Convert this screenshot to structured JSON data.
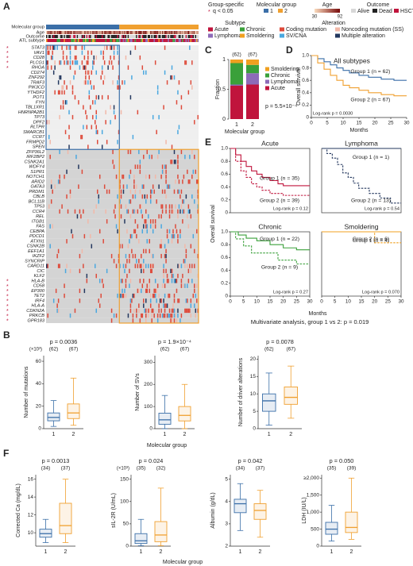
{
  "panels": [
    "A",
    "B",
    "C",
    "D",
    "E",
    "F"
  ],
  "multivariate": "Multivariate analysis, group 1 vs 2: p = 0.019",
  "panel_e": {
    "ylabel": "Overall survival",
    "xlabel": "Months"
  },
  "panel_b": {
    "xlabel": "Molecular group"
  },
  "panel_f": {
    "xlabel": "Molecular group"
  },
  "chart_data": [
    {
      "type": "oncoprint",
      "track_labels": [
        "Molecular group",
        "Age",
        "Outcome",
        "ATL subtype"
      ],
      "group_names": [
        "1",
        "2"
      ],
      "group_sizes": [
        62,
        67
      ],
      "group_colors": [
        "#3b6fa8",
        "#f0a030"
      ],
      "genes": [
        "STAT3",
        "VAV1",
        "CD28",
        "PLCG1",
        "RHOA",
        "CD274",
        "ZNF292",
        "TRAF3",
        "PIK3CD",
        "YTHDF2",
        "POT1",
        "FYN",
        "TBL1XR1",
        "HNRNPA2B1",
        "TP73",
        "DPF2",
        "RLTPR",
        "SMARCB1",
        "CCR7",
        "FRMPD2",
        "SPEN",
        "ZFP36L2",
        "IRF2BP2",
        "CSNK2A1",
        "WDFY4",
        "S1PR1",
        "NOTCH1",
        "ARID2",
        "GATA3",
        "PRDM1",
        "CBLB",
        "BCL11B",
        "TP53",
        "CCR4",
        "REL",
        "ITGB1",
        "FAS",
        "CEBPA",
        "PDCD1",
        "ATXN1",
        "CSNK2B",
        "EEF1A1",
        "IKZF2",
        "SYNCRIP",
        "CARD11",
        "CIC",
        "KLF2",
        "HLA-B",
        "CD58",
        "EP300",
        "TET2",
        "IRF4",
        "HLA-A",
        "CDKN2A",
        "PRKCB",
        "GPR183"
      ],
      "significant": [
        true,
        true,
        true,
        true,
        true,
        false,
        false,
        false,
        false,
        false,
        false,
        false,
        false,
        false,
        false,
        false,
        false,
        false,
        false,
        false,
        false,
        false,
        false,
        false,
        false,
        false,
        false,
        false,
        false,
        false,
        false,
        false,
        false,
        false,
        false,
        false,
        false,
        false,
        false,
        false,
        false,
        false,
        false,
        false,
        false,
        false,
        false,
        true,
        true,
        true,
        true,
        true,
        true,
        true,
        true,
        true
      ],
      "counts": [
        [
          20,
          12,
          15,
          22,
          12,
          8,
          8,
          10,
          8,
          7,
          6,
          6,
          6,
          5,
          6,
          5,
          5,
          5,
          4,
          4,
          3,
          3,
          2,
          1,
          2,
          2,
          4,
          3,
          4,
          5,
          4,
          2,
          4,
          8,
          3,
          2,
          3,
          3,
          3,
          2,
          2,
          2,
          4,
          2,
          8,
          4,
          2,
          3,
          2,
          3,
          3,
          4,
          2,
          5,
          4,
          1
        ],
        [
          3,
          1,
          2,
          4,
          3,
          3,
          4,
          5,
          3,
          3,
          2,
          1,
          2,
          2,
          3,
          1,
          1,
          2,
          1,
          1,
          1,
          8,
          8,
          6,
          7,
          8,
          12,
          10,
          12,
          15,
          12,
          9,
          14,
          20,
          10,
          8,
          10,
          12,
          10,
          8,
          8,
          7,
          12,
          8,
          22,
          12,
          8,
          18,
          14,
          14,
          18,
          16,
          12,
          25,
          25,
          10
        ]
      ],
      "legend": {
        "group_specific": "Group-specific",
        "star": "*",
        "q": "q < 0.05",
        "molecular_group": "Molecular group",
        "age": "Age",
        "age_range": [
          30,
          92
        ],
        "outcome": "Outcome",
        "outcomes": [
          {
            "name": "Alive",
            "color": "#d8d8d8"
          },
          {
            "name": "Dead",
            "color": "#222222"
          },
          {
            "name": "HSCT",
            "color": "#c0143c"
          }
        ],
        "subtype": "Subtype",
        "subtypes": [
          {
            "name": "Acute",
            "color": "#c0143c"
          },
          {
            "name": "Chronic",
            "color": "#3aa03a"
          },
          {
            "name": "Lymphoma",
            "color": "#8d6bb8"
          },
          {
            "name": "Smoldering",
            "color": "#f0a020"
          }
        ],
        "alteration": "Alteration",
        "alterations": [
          {
            "name": "Coding mutation",
            "color": "#de4a3a"
          },
          {
            "name": "Noncoding mutation (SS)",
            "color": "#f2b8a8"
          },
          {
            "name": "SV/CNA",
            "color": "#4aa8e0"
          },
          {
            "name": "Multiple alteration",
            "color": "#23375e"
          }
        ]
      }
    },
    {
      "type": "stacked-bar",
      "categories": [
        "1",
        "2"
      ],
      "counts": [
        "(62)",
        "(67)"
      ],
      "ylabel": "Fraction",
      "xlabel": "Molecular group",
      "annotation": "p = 5.5×10⁻⁴",
      "ylim": [
        0,
        1
      ],
      "yticks": [
        0,
        0.5,
        1
      ],
      "series": [
        {
          "name": "Acute",
          "color": "#c0143c",
          "values": [
            0.56,
            0.58
          ]
        },
        {
          "name": "Lymphoma",
          "color": "#8d6bb8",
          "values": [
            0.02,
            0.19
          ]
        },
        {
          "name": "Chronic",
          "color": "#3aa03a",
          "values": [
            0.36,
            0.14
          ]
        },
        {
          "name": "Smoldering",
          "color": "#f0a020",
          "values": [
            0.06,
            0.09
          ]
        }
      ]
    },
    {
      "type": "km",
      "title": "All subtypes",
      "ylabel": "Overall survival",
      "xlabel": "Months",
      "annotation": "Log-rank p = 0.0030",
      "xlim": [
        0,
        30
      ],
      "xticks": [
        0,
        5,
        10,
        15,
        20,
        25,
        30
      ],
      "ylim": [
        0,
        1
      ],
      "yticks": [
        0,
        0.2,
        0.4,
        0.6,
        0.8,
        {
          "value": 1,
          "label": "1.0"
        }
      ],
      "series": [
        {
          "name": "Group 1 (n = 62)",
          "color": "#3b6fa8",
          "x": [
            0,
            2,
            4,
            6,
            8,
            10,
            12,
            15,
            18,
            22,
            26,
            30
          ],
          "y": [
            1,
            0.95,
            0.9,
            0.85,
            0.8,
            0.76,
            0.72,
            0.68,
            0.65,
            0.62,
            0.6,
            0.6
          ]
        },
        {
          "name": "Group 2 (n = 67)",
          "color": "#f0a030",
          "x": [
            0,
            2,
            4,
            6,
            8,
            10,
            12,
            15,
            18,
            22,
            26,
            30
          ],
          "y": [
            1,
            0.88,
            0.78,
            0.68,
            0.6,
            0.52,
            0.48,
            0.44,
            0.4,
            0.37,
            0.35,
            0.35
          ]
        }
      ]
    },
    {
      "type": "km",
      "title": "Acute",
      "annotation": "Log-rank p = 0.12",
      "xlim": [
        0,
        30
      ],
      "ylim": [
        0,
        1
      ],
      "yticks": [
        0,
        0.2,
        0.4,
        0.6,
        0.8,
        {
          "value": 1,
          "label": "1.0"
        }
      ],
      "series": [
        {
          "name": "Group 1 (n = 35)",
          "color": "#c0143c",
          "x": [
            0,
            2,
            4,
            6,
            8,
            10,
            12,
            15,
            18,
            20,
            25,
            30
          ],
          "y": [
            1,
            0.9,
            0.8,
            0.72,
            0.65,
            0.6,
            0.55,
            0.5,
            0.45,
            0.42,
            0.42,
            0.42
          ]
        },
        {
          "name": "Group 2 (n = 39)",
          "color": "#c0143c",
          "dashed": true,
          "x": [
            0,
            2,
            4,
            6,
            8,
            10,
            12,
            15,
            18,
            20,
            25,
            30
          ],
          "y": [
            1,
            0.8,
            0.65,
            0.55,
            0.45,
            0.4,
            0.35,
            0.3,
            0.3,
            0.27,
            0.27,
            0.27
          ]
        }
      ]
    },
    {
      "type": "km",
      "title": "Lymphoma",
      "annotation": "Log-rank p = 0.54",
      "xlim": [
        0,
        30
      ],
      "ylim": [
        0,
        1
      ],
      "series": [
        {
          "name": "Group 1 (n = 1)",
          "color": "#23375e",
          "x": [
            0,
            30
          ],
          "y": [
            1,
            1
          ]
        },
        {
          "name": "Group 2 (n = 13)",
          "color": "#23375e",
          "dashed": true,
          "x": [
            0,
            2,
            4,
            6,
            8,
            10,
            12,
            14,
            18,
            22,
            26,
            30
          ],
          "y": [
            1,
            0.92,
            0.85,
            0.75,
            0.62,
            0.55,
            0.46,
            0.38,
            0.3,
            0.23,
            0.15,
            0.15
          ]
        }
      ]
    },
    {
      "type": "km",
      "title": "Chronic",
      "annotation": "Log-rank p = 0.27",
      "xlim": [
        0,
        30
      ],
      "xticks": [
        0,
        5,
        10,
        15,
        20,
        25,
        30
      ],
      "ylim": [
        0,
        1
      ],
      "yticks": [
        0,
        0.2,
        0.4,
        0.6,
        0.8,
        {
          "value": 1,
          "label": "1.0"
        }
      ],
      "series": [
        {
          "name": "Group 1 (n = 22)",
          "color": "#3aa03a",
          "x": [
            0,
            3,
            6,
            10,
            15,
            20,
            25,
            30
          ],
          "y": [
            1,
            0.95,
            0.9,
            0.86,
            0.8,
            0.75,
            0.72,
            0.72
          ]
        },
        {
          "name": "Group 2 (n = 9)",
          "color": "#3aa03a",
          "dashed": true,
          "x": [
            0,
            2,
            5,
            8,
            12,
            18,
            25,
            30
          ],
          "y": [
            1,
            0.89,
            0.78,
            0.67,
            0.67,
            0.56,
            0.5,
            0.5
          ]
        }
      ]
    },
    {
      "type": "km",
      "title": "Smoldering",
      "annotation": "Log-rank p = 0.070",
      "xlim": [
        0,
        30
      ],
      "xticks": [
        0,
        5,
        10,
        15,
        20,
        25,
        30
      ],
      "ylim": [
        0,
        1
      ],
      "series": [
        {
          "name": "Group 1 (n = 4)",
          "color": "#f0a020",
          "x": [
            0,
            30
          ],
          "y": [
            1,
            1
          ]
        },
        {
          "name": "Group 2 (n = 6)",
          "color": "#f0a020",
          "dashed": true,
          "x": [
            0,
            8,
            20,
            30
          ],
          "y": [
            1,
            1,
            0.83,
            0.83
          ]
        }
      ]
    },
    {
      "type": "box",
      "ylabel": "Number of mutations",
      "unit_note": "(×10³)",
      "annotation": "p = 0.0036",
      "categories": [
        "1",
        "2"
      ],
      "counts": [
        "(62)",
        "(67)"
      ],
      "colors": [
        "#3b6fa8",
        "#f0a030"
      ],
      "ylim": [
        0,
        65
      ],
      "yticks": [
        0,
        20,
        40,
        60
      ],
      "boxes": [
        {
          "median": 10,
          "q1": 7,
          "q3": 14,
          "whisker_low": 2,
          "whisker_high": 25
        },
        {
          "median": 14,
          "q1": 9,
          "q3": 22,
          "whisker_low": 3,
          "whisker_high": 45
        }
      ]
    },
    {
      "type": "box",
      "ylabel": "Number of SVs",
      "annotation": "p = 1.9×10⁻⁴",
      "categories": [
        "1",
        "2"
      ],
      "counts": [
        "(62)",
        "(67)"
      ],
      "colors": [
        "#3b6fa8",
        "#f0a030"
      ],
      "ylim": [
        0,
        330
      ],
      "yticks": [
        0,
        100,
        200,
        300
      ],
      "boxes": [
        {
          "median": 40,
          "q1": 20,
          "q3": 70,
          "whisker_low": 0,
          "whisker_high": 150
        },
        {
          "median": 60,
          "q1": 35,
          "q3": 100,
          "whisker_low": 0,
          "whisker_high": 200
        }
      ]
    },
    {
      "type": "box",
      "ylabel": "Number of driver alterations",
      "annotation": "p = 0.0078",
      "categories": [
        "1",
        "2"
      ],
      "counts": [
        "(62)",
        "(67)"
      ],
      "colors": [
        "#3b6fa8",
        "#f0a030"
      ],
      "ylim": [
        0,
        21
      ],
      "yticks": [
        0,
        5,
        10,
        15,
        20
      ],
      "boxes": [
        {
          "median": 8,
          "q1": 5,
          "q3": 10,
          "whisker_low": 1,
          "whisker_high": 16
        },
        {
          "median": 9,
          "q1": 7,
          "q3": 12,
          "whisker_low": 3,
          "whisker_high": 18
        }
      ]
    },
    {
      "type": "box",
      "ylabel": "Corrected Ca (mg/dL)",
      "annotation": "p = 0.0013",
      "categories": [
        "1",
        "2"
      ],
      "counts": [
        "(34)",
        "(37)"
      ],
      "colors": [
        "#3b6fa8",
        "#f0a030"
      ],
      "ylim": [
        8.5,
        16.5
      ],
      "yticks": [
        10,
        12,
        14,
        16
      ],
      "boxes": [
        {
          "median": 9.9,
          "q1": 9.5,
          "q3": 10.4,
          "whisker_low": 8.9,
          "whisker_high": 11.5
        },
        {
          "median": 10.8,
          "q1": 9.9,
          "q3": 13.3,
          "whisker_low": 8.9,
          "whisker_high": 16
        }
      ]
    },
    {
      "type": "box",
      "ylabel": "sIL-2R (U/mL)",
      "unit_note": "(×10³)",
      "annotation": "p = 0.024",
      "categories": [
        "1",
        "2"
      ],
      "counts": [
        "(35)",
        "(32)"
      ],
      "colors": [
        "#3b6fa8",
        "#f0a030"
      ],
      "ylim": [
        0,
        160
      ],
      "yticks": [
        0,
        50,
        100,
        150
      ],
      "boxes": [
        {
          "median": 12,
          "q1": 6,
          "q3": 28,
          "whisker_low": 1,
          "whisker_high": 60
        },
        {
          "median": 25,
          "q1": 10,
          "q3": 55,
          "whisker_low": 1,
          "whisker_high": 130
        }
      ]
    },
    {
      "type": "box",
      "ylabel": "Albumin (g/dL)",
      "annotation": "p = 0.042",
      "categories": [
        "1",
        "2"
      ],
      "counts": [
        "(34)",
        "(37)"
      ],
      "colors": [
        "#3b6fa8",
        "#f0a030"
      ],
      "ylim": [
        2,
        5.2
      ],
      "yticks": [
        2,
        3,
        4,
        5
      ],
      "boxes": [
        {
          "median": 3.9,
          "q1": 3.5,
          "q3": 4.1,
          "whisker_low": 2.7,
          "whisker_high": 4.8
        },
        {
          "median": 3.6,
          "q1": 3.2,
          "q3": 3.9,
          "whisker_low": 2.4,
          "whisker_high": 4.5
        }
      ]
    },
    {
      "type": "box",
      "ylabel": "LDH (IU/L)",
      "annotation": "p = 0.050",
      "categories": [
        "1",
        "2"
      ],
      "counts": [
        "(35)",
        "(39)"
      ],
      "colors": [
        "#3b6fa8",
        "#f0a030"
      ],
      "ylim": [
        0,
        2100
      ],
      "yticks": [
        0,
        500,
        {
          "value": 1000,
          "label": "1,000"
        },
        {
          "value": 1500,
          "label": "1,500"
        },
        {
          "value": 2000,
          "label": "≥2,000"
        }
      ],
      "boxes": [
        {
          "median": 500,
          "q1": 350,
          "q3": 700,
          "whisker_low": 150,
          "whisker_high": 1200
        },
        {
          "median": 550,
          "q1": 400,
          "q3": 1000,
          "whisker_low": 200,
          "whisker_high": 2000
        }
      ]
    }
  ]
}
